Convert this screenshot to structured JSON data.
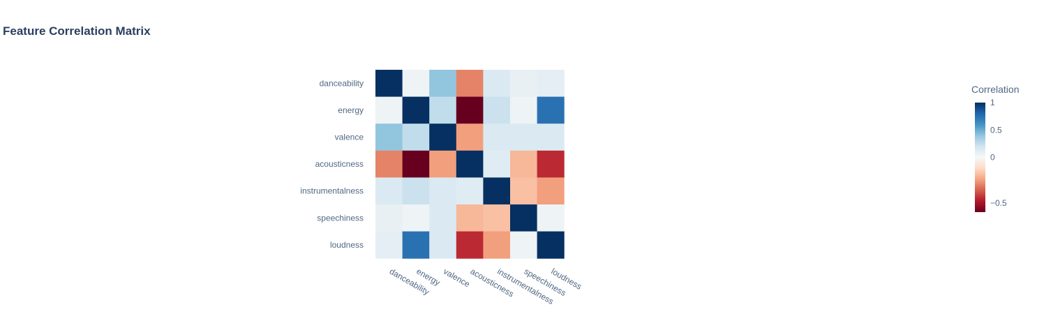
{
  "chart_data": {
    "type": "heatmap",
    "title": "Feature Correlation Matrix",
    "x": [
      "danceability",
      "energy",
      "valence",
      "acousticness",
      "instrumentalness",
      "speechiness",
      "loudness"
    ],
    "y": [
      "danceability",
      "energy",
      "valence",
      "acousticness",
      "instrumentalness",
      "speechiness",
      "loudness"
    ],
    "z": [
      [
        1.0,
        0.05,
        0.4,
        -0.3,
        0.15,
        0.08,
        0.1
      ],
      [
        0.05,
        1.0,
        0.25,
        -0.6,
        0.22,
        0.05,
        0.75
      ],
      [
        0.4,
        0.25,
        1.0,
        -0.25,
        0.15,
        0.15,
        0.15
      ],
      [
        -0.3,
        -0.6,
        -0.25,
        1.0,
        0.12,
        -0.2,
        -0.45
      ],
      [
        0.15,
        0.22,
        0.15,
        0.12,
        1.0,
        -0.18,
        -0.25
      ],
      [
        0.08,
        0.05,
        0.15,
        -0.2,
        -0.18,
        1.0,
        0.05
      ],
      [
        0.1,
        0.75,
        0.15,
        -0.45,
        -0.25,
        0.05,
        1.0
      ]
    ],
    "zmin": -0.6,
    "zmax": 1.0,
    "colorscale": "RdBu",
    "colorbar": {
      "title": "Correlation",
      "tickvals": [
        1,
        0.5,
        0,
        -0.5
      ],
      "ticktext": [
        "1",
        "0.5",
        "0",
        "−0.5"
      ]
    }
  }
}
